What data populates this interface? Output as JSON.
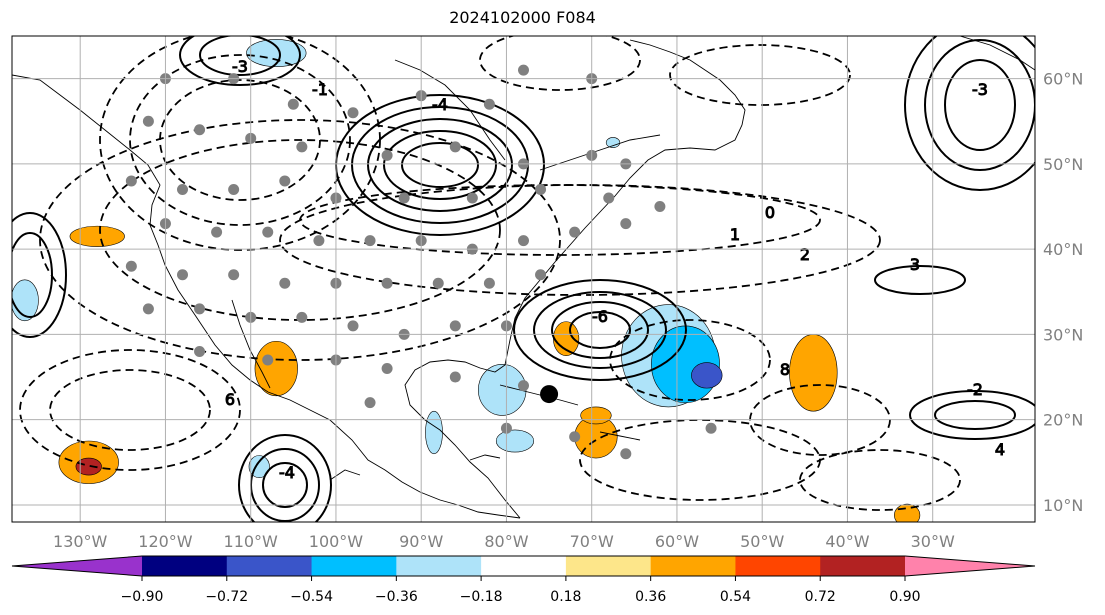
{
  "title": "2024102000 F084",
  "chart_data": {
    "type": "heatmap",
    "title": "2024102000 F084",
    "lon_range": [
      -138,
      -18
    ],
    "lat_range": [
      8,
      65
    ],
    "lon_ticks": [
      -130,
      -120,
      -110,
      -100,
      -90,
      -80,
      -70,
      -60,
      -50,
      -40,
      -30
    ],
    "lon_tick_labels": [
      "130°W",
      "120°W",
      "110°W",
      "100°W",
      "90°W",
      "80°W",
      "70°W",
      "60°W",
      "50°W",
      "40°W",
      "30°W"
    ],
    "lat_ticks": [
      10,
      20,
      30,
      40,
      50,
      60
    ],
    "lat_tick_labels": [
      "10°N",
      "20°N",
      "30°N",
      "40°N",
      "50°N",
      "60°N"
    ],
    "grid": true,
    "colorbar": {
      "orientation": "horizontal",
      "extend": "both",
      "levels": [
        -0.9,
        -0.72,
        -0.54,
        -0.36,
        -0.18,
        0.18,
        0.36,
        0.54,
        0.72,
        0.9
      ],
      "tick_labels": [
        "−0.90",
        "−0.72",
        "−0.54",
        "−0.36",
        "−0.18",
        "0.18",
        "0.36",
        "0.54",
        "0.72",
        "0.90"
      ],
      "colors": [
        "#9932cc",
        "#000080",
        "#3a55c9",
        "#00bfff",
        "#aee3f9",
        "#ffffff",
        "#fde68a",
        "#ffa500",
        "#ff4500",
        "#b22222",
        "#ff82ab"
      ]
    },
    "shaded_regions": [
      {
        "lon": -107,
        "lat": 63,
        "rx": 3.5,
        "ry": 1.6,
        "level": -0.36
      },
      {
        "lon": -128,
        "lat": 41.5,
        "rx": 3.2,
        "ry": 1.2,
        "level": 0.36
      },
      {
        "lon": -136.5,
        "lat": 34,
        "rx": 1.6,
        "ry": 2.4,
        "level": -0.36
      },
      {
        "lon": -107,
        "lat": 26,
        "rx": 2.5,
        "ry": 3.2,
        "level": 0.36
      },
      {
        "lon": -129,
        "lat": 15,
        "rx": 3.5,
        "ry": 2.5,
        "level": 0.36
      },
      {
        "lon": -129,
        "lat": 14.5,
        "rx": 1.5,
        "ry": 1.0,
        "level": 0.72
      },
      {
        "lon": -109,
        "lat": 14.5,
        "rx": 1.2,
        "ry": 1.3,
        "level": -0.36
      },
      {
        "lon": -80.5,
        "lat": 23.5,
        "rx": 2.8,
        "ry": 3.0,
        "level": -0.36
      },
      {
        "lon": -79,
        "lat": 17.5,
        "rx": 2.2,
        "ry": 1.3,
        "level": -0.36
      },
      {
        "lon": -61,
        "lat": 27.5,
        "rx": 5.5,
        "ry": 6.0,
        "level": -0.36
      },
      {
        "lon": -59,
        "lat": 26.5,
        "rx": 4.0,
        "ry": 4.5,
        "level": -0.54
      },
      {
        "lon": -56.5,
        "lat": 25.2,
        "rx": 1.8,
        "ry": 1.5,
        "level": -0.72
      },
      {
        "lon": -69.5,
        "lat": 18.0,
        "rx": 2.5,
        "ry": 2.5,
        "level": 0.36
      },
      {
        "lon": -69.5,
        "lat": 20.5,
        "rx": 1.8,
        "ry": 1.0,
        "level": 0.36
      },
      {
        "lon": -44,
        "lat": 25.5,
        "rx": 2.8,
        "ry": 4.5,
        "level": 0.36
      },
      {
        "lon": -73,
        "lat": 29.5,
        "rx": 1.5,
        "ry": 2.0,
        "level": 0.36
      },
      {
        "lon": -33,
        "lat": 8.8,
        "rx": 1.5,
        "ry": 1.3,
        "level": 0.36
      },
      {
        "lon": -88.5,
        "lat": 18.5,
        "rx": 1.0,
        "ry": 2.5,
        "level": -0.36
      },
      {
        "lon": -67.5,
        "lat": 52.5,
        "rx": 0.8,
        "ry": 0.6,
        "level": -0.36
      }
    ],
    "contour_labels": [
      "-3",
      "-4",
      "-6",
      "-4",
      "-3",
      "-2",
      "-1",
      "0",
      "1",
      "2",
      "3",
      "4",
      "6",
      "8"
    ],
    "marked_point": {
      "lon": -75,
      "lat": 23
    }
  }
}
